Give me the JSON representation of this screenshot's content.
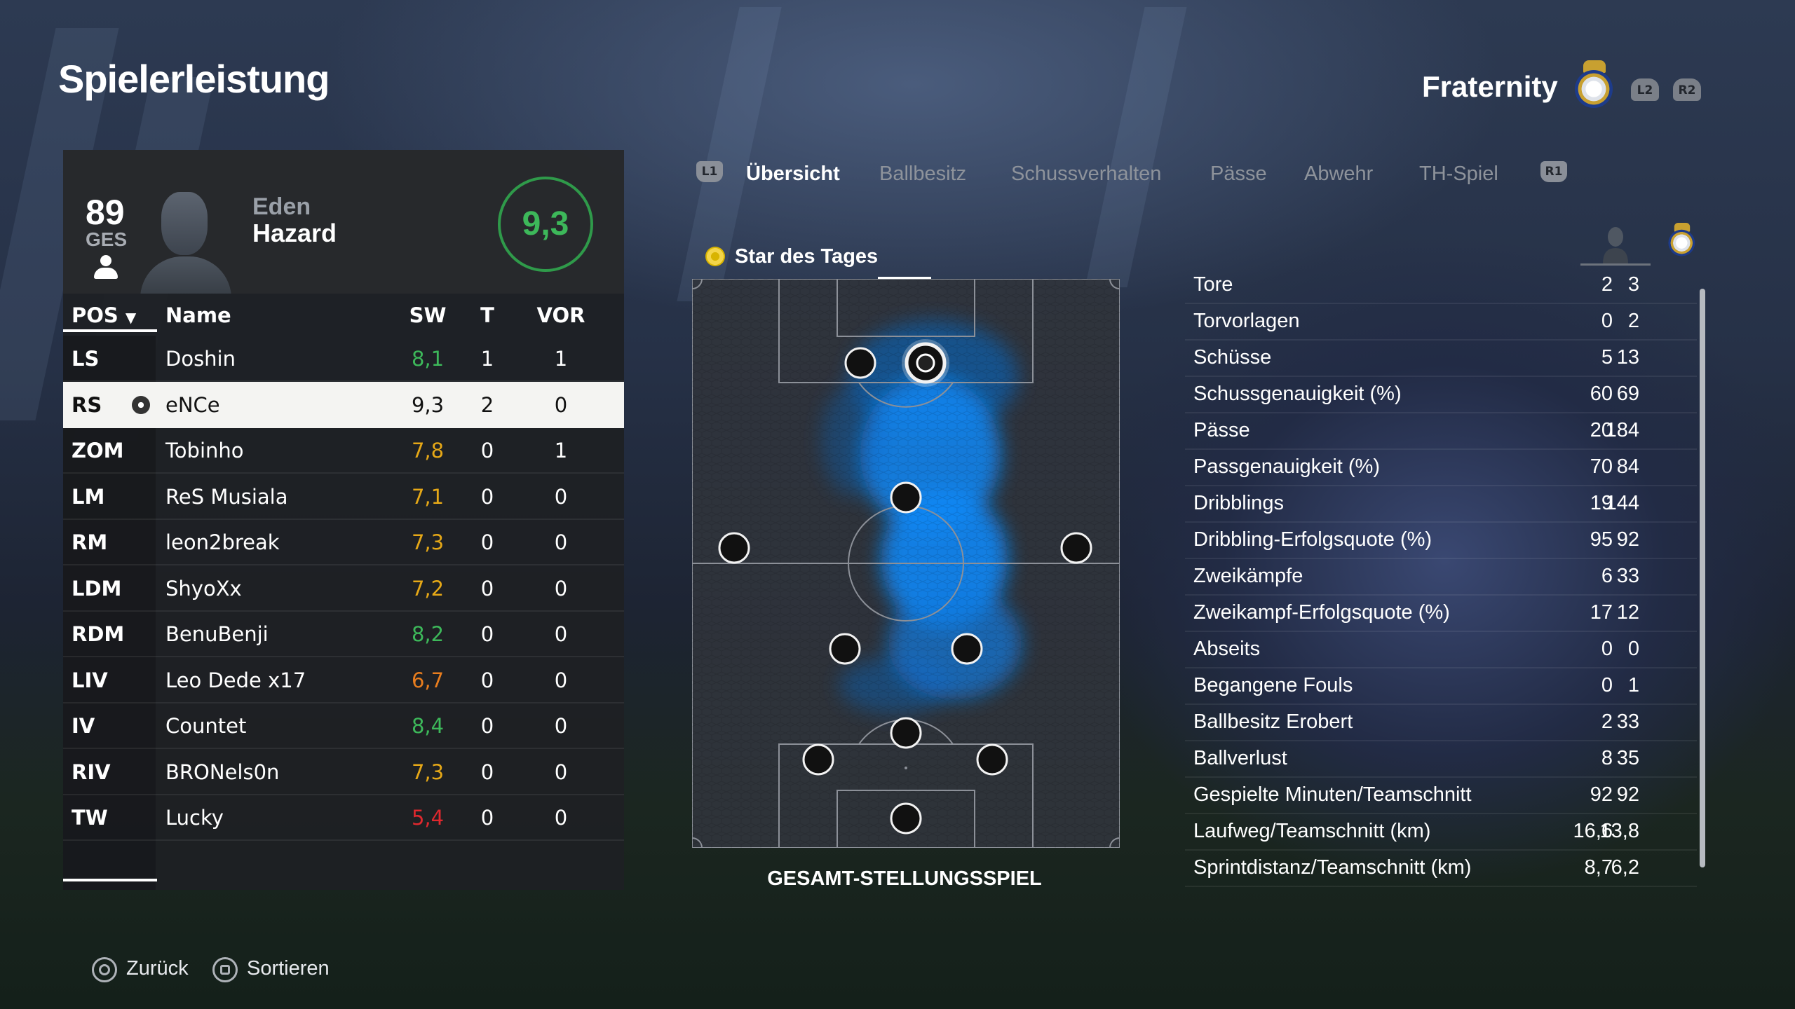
{
  "header": {
    "title": "Spielerleistung",
    "team_name": "Fraternity",
    "trigger_left": "L2",
    "trigger_right": "R2"
  },
  "player": {
    "overall": "89",
    "overall_label": "GES",
    "first_name": "Eden",
    "last_name": "Hazard",
    "match_rating": "9,3"
  },
  "table": {
    "columns": {
      "pos": "POS",
      "name": "Name",
      "sw": "SW",
      "t": "T",
      "vor": "VOR"
    },
    "rows": [
      {
        "pos": "LS",
        "name": "Doshin",
        "sw": "8,1",
        "t": "1",
        "vor": "1",
        "color": "#3db85a"
      },
      {
        "pos": "RS",
        "name": "eNCe",
        "sw": "9,3",
        "t": "2",
        "vor": "0",
        "color": "#111111",
        "selected": true
      },
      {
        "pos": "ZOM",
        "name": "Tobinho",
        "sw": "7,8",
        "t": "0",
        "vor": "1",
        "color": "#e6a817"
      },
      {
        "pos": "LM",
        "name": "ReS Musiala",
        "sw": "7,1",
        "t": "0",
        "vor": "0",
        "color": "#e6a817"
      },
      {
        "pos": "RM",
        "name": "leon2break",
        "sw": "7,3",
        "t": "0",
        "vor": "0",
        "color": "#e6a817"
      },
      {
        "pos": "LDM",
        "name": "ShyoXx",
        "sw": "7,2",
        "t": "0",
        "vor": "0",
        "color": "#e6a817"
      },
      {
        "pos": "RDM",
        "name": "BenuBenji",
        "sw": "8,2",
        "t": "0",
        "vor": "0",
        "color": "#3db85a"
      },
      {
        "pos": "LIV",
        "name": "Leo Dede x17",
        "sw": "6,7",
        "t": "0",
        "vor": "0",
        "color": "#e87d1e"
      },
      {
        "pos": "IV",
        "name": "Countet",
        "sw": "8,4",
        "t": "0",
        "vor": "0",
        "color": "#3db85a"
      },
      {
        "pos": "RIV",
        "name": "BRONels0n",
        "sw": "7,3",
        "t": "0",
        "vor": "0",
        "color": "#e6a817"
      },
      {
        "pos": "TW",
        "name": "Lucky",
        "sw": "5,4",
        "t": "0",
        "vor": "0",
        "color": "#e0282e"
      }
    ]
  },
  "tabs": {
    "left_button": "L1",
    "right_button": "R1",
    "items": [
      {
        "label": "Übersicht",
        "active": true
      },
      {
        "label": "Ballbesitz"
      },
      {
        "label": "Schussverhalten"
      },
      {
        "label": "Pässe"
      },
      {
        "label": "Abwehr"
      },
      {
        "label": "TH-Spiel"
      }
    ]
  },
  "pitch": {
    "star_label": "Star des Tages",
    "caption": "GESAMT-STELLUNGSSPIEL",
    "heat_color": "#0a8cff"
  },
  "stats": {
    "rows": [
      {
        "label": "Tore",
        "player": "2",
        "team": "3"
      },
      {
        "label": "Torvorlagen",
        "player": "0",
        "team": "2"
      },
      {
        "label": "Schüsse",
        "player": "5",
        "team": "13"
      },
      {
        "label": "Schussgenauigkeit (%)",
        "player": "60",
        "team": "69"
      },
      {
        "label": "Pässe",
        "player": "20",
        "team": "184"
      },
      {
        "label": "Passgenauigkeit (%)",
        "player": "70",
        "team": "84"
      },
      {
        "label": "Dribblings",
        "player": "19",
        "team": "144"
      },
      {
        "label": "Dribbling-Erfolgsquote (%)",
        "player": "95",
        "team": "92"
      },
      {
        "label": "Zweikämpfe",
        "player": "6",
        "team": "33"
      },
      {
        "label": "Zweikampf-Erfolgsquote (%)",
        "player": "17",
        "team": "12"
      },
      {
        "label": "Abseits",
        "player": "0",
        "team": "0"
      },
      {
        "label": "Begangene Fouls",
        "player": "0",
        "team": "1"
      },
      {
        "label": "Ballbesitz Erobert",
        "player": "2",
        "team": "33"
      },
      {
        "label": "Ballverlust",
        "player": "8",
        "team": "35"
      },
      {
        "label": "Gespielte Minuten/Teamschnitt",
        "player": "92",
        "team": "92"
      },
      {
        "label": "Laufweg/Teamschnitt (km)",
        "player": "16,6",
        "team": "13,8"
      },
      {
        "label": "Sprintdistanz/Teamschnitt (km)",
        "player": "8,7",
        "team": "6,2"
      }
    ]
  },
  "footer": {
    "back": "Zurück",
    "sort": "Sortieren"
  }
}
